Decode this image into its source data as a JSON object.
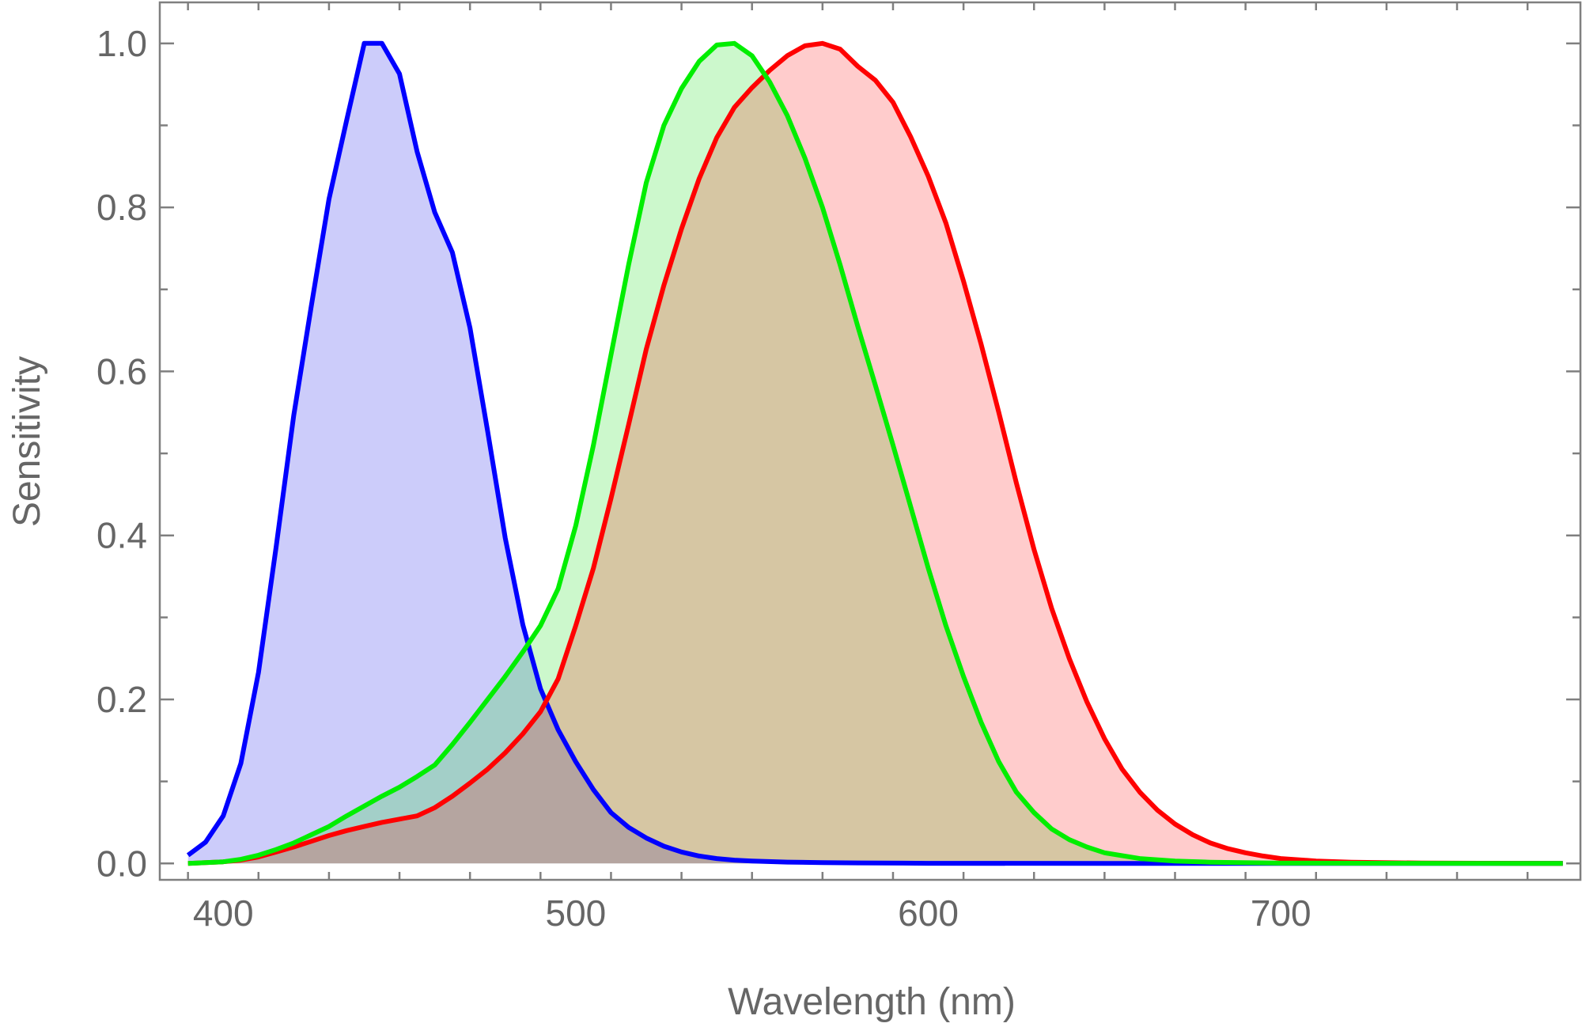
{
  "chart_data": {
    "type": "area",
    "title": "",
    "xlabel": "Wavelength (nm)",
    "ylabel": "Sensitivity",
    "xlim": [
      382,
      785
    ],
    "ylim": [
      -0.02,
      1.05
    ],
    "x_ticks": [
      400,
      500,
      600,
      700
    ],
    "x_tick_labels": [
      "400",
      "500",
      "600",
      "700"
    ],
    "y_ticks": [
      0.0,
      0.2,
      0.4,
      0.6,
      0.8,
      1.0
    ],
    "y_tick_labels": [
      "0.0",
      "0.2",
      "0.4",
      "0.6",
      "0.8",
      "1.0"
    ],
    "grid": false,
    "legend": "none",
    "frame_color": "#7f7f7f",
    "series": [
      {
        "color": "#0000ff",
        "fill": "rgba(0,0,230,0.20)",
        "points": [
          [
            390,
            0.01
          ],
          [
            395,
            0.026
          ],
          [
            400,
            0.058
          ],
          [
            405,
            0.122
          ],
          [
            410,
            0.233
          ],
          [
            415,
            0.386
          ],
          [
            420,
            0.546
          ],
          [
            425,
            0.68
          ],
          [
            430,
            0.81
          ],
          [
            435,
            0.906
          ],
          [
            440,
            1.0
          ],
          [
            445,
            1.0
          ],
          [
            450,
            0.963
          ],
          [
            455,
            0.868
          ],
          [
            460,
            0.794
          ],
          [
            465,
            0.745
          ],
          [
            470,
            0.653
          ],
          [
            475,
            0.527
          ],
          [
            480,
            0.397
          ],
          [
            485,
            0.291
          ],
          [
            490,
            0.213
          ],
          [
            495,
            0.163
          ],
          [
            500,
            0.124
          ],
          [
            505,
            0.09
          ],
          [
            510,
            0.062
          ],
          [
            515,
            0.044
          ],
          [
            520,
            0.031
          ],
          [
            525,
            0.021
          ],
          [
            530,
            0.014
          ],
          [
            535,
            0.009
          ],
          [
            540,
            0.006
          ],
          [
            545,
            0.004
          ],
          [
            550,
            0.003
          ],
          [
            560,
            0.0016
          ],
          [
            570,
            0.001
          ],
          [
            580,
            0.0006
          ],
          [
            600,
            0.0002
          ],
          [
            650,
            0.0
          ],
          [
            700,
            0.0
          ],
          [
            780,
            0.0
          ]
        ]
      },
      {
        "color": "#00ee00",
        "fill": "rgba(0,220,0,0.20)",
        "points": [
          [
            390,
            0.0
          ],
          [
            395,
            0.001
          ],
          [
            400,
            0.002
          ],
          [
            405,
            0.005
          ],
          [
            410,
            0.01
          ],
          [
            415,
            0.017
          ],
          [
            420,
            0.025
          ],
          [
            425,
            0.035
          ],
          [
            430,
            0.045
          ],
          [
            435,
            0.058
          ],
          [
            440,
            0.07
          ],
          [
            445,
            0.082
          ],
          [
            450,
            0.093
          ],
          [
            455,
            0.106
          ],
          [
            460,
            0.12
          ],
          [
            465,
            0.145
          ],
          [
            470,
            0.172
          ],
          [
            475,
            0.2
          ],
          [
            480,
            0.228
          ],
          [
            485,
            0.258
          ],
          [
            490,
            0.29
          ],
          [
            495,
            0.335
          ],
          [
            500,
            0.412
          ],
          [
            505,
            0.51
          ],
          [
            510,
            0.62
          ],
          [
            515,
            0.73
          ],
          [
            520,
            0.83
          ],
          [
            525,
            0.9
          ],
          [
            530,
            0.945
          ],
          [
            535,
            0.978
          ],
          [
            540,
            0.998
          ],
          [
            545,
            1.0
          ],
          [
            550,
            0.985
          ],
          [
            555,
            0.953
          ],
          [
            560,
            0.912
          ],
          [
            565,
            0.86
          ],
          [
            570,
            0.8
          ],
          [
            575,
            0.73
          ],
          [
            580,
            0.655
          ],
          [
            585,
            0.583
          ],
          [
            590,
            0.51
          ],
          [
            595,
            0.435
          ],
          [
            600,
            0.36
          ],
          [
            605,
            0.29
          ],
          [
            610,
            0.228
          ],
          [
            615,
            0.172
          ],
          [
            620,
            0.124
          ],
          [
            625,
            0.087
          ],
          [
            630,
            0.062
          ],
          [
            635,
            0.042
          ],
          [
            640,
            0.029
          ],
          [
            645,
            0.02
          ],
          [
            650,
            0.013
          ],
          [
            660,
            0.006
          ],
          [
            670,
            0.003
          ],
          [
            680,
            0.0015
          ],
          [
            700,
            0.0004
          ],
          [
            780,
            0.0
          ]
        ]
      },
      {
        "color": "#ff0000",
        "fill": "rgba(255,0,0,0.20)",
        "points": [
          [
            390,
            0.0
          ],
          [
            400,
            0.002
          ],
          [
            405,
            0.004
          ],
          [
            410,
            0.008
          ],
          [
            415,
            0.014
          ],
          [
            420,
            0.02
          ],
          [
            425,
            0.027
          ],
          [
            430,
            0.034
          ],
          [
            435,
            0.04
          ],
          [
            440,
            0.045
          ],
          [
            445,
            0.05
          ],
          [
            450,
            0.054
          ],
          [
            455,
            0.058
          ],
          [
            460,
            0.068
          ],
          [
            465,
            0.082
          ],
          [
            470,
            0.098
          ],
          [
            475,
            0.115
          ],
          [
            480,
            0.135
          ],
          [
            485,
            0.158
          ],
          [
            490,
            0.185
          ],
          [
            495,
            0.225
          ],
          [
            500,
            0.29
          ],
          [
            505,
            0.36
          ],
          [
            510,
            0.445
          ],
          [
            515,
            0.535
          ],
          [
            520,
            0.627
          ],
          [
            525,
            0.705
          ],
          [
            530,
            0.774
          ],
          [
            535,
            0.835
          ],
          [
            540,
            0.885
          ],
          [
            545,
            0.922
          ],
          [
            550,
            0.946
          ],
          [
            555,
            0.967
          ],
          [
            560,
            0.985
          ],
          [
            565,
            0.997
          ],
          [
            570,
            1.0
          ],
          [
            575,
            0.993
          ],
          [
            580,
            0.972
          ],
          [
            585,
            0.955
          ],
          [
            590,
            0.928
          ],
          [
            595,
            0.886
          ],
          [
            600,
            0.838
          ],
          [
            605,
            0.781
          ],
          [
            610,
            0.71
          ],
          [
            615,
            0.633
          ],
          [
            620,
            0.55
          ],
          [
            625,
            0.464
          ],
          [
            630,
            0.383
          ],
          [
            635,
            0.311
          ],
          [
            640,
            0.25
          ],
          [
            645,
            0.197
          ],
          [
            650,
            0.152
          ],
          [
            655,
            0.115
          ],
          [
            660,
            0.087
          ],
          [
            665,
            0.065
          ],
          [
            670,
            0.048
          ],
          [
            675,
            0.035
          ],
          [
            680,
            0.025
          ],
          [
            685,
            0.018
          ],
          [
            690,
            0.013
          ],
          [
            695,
            0.009
          ],
          [
            700,
            0.006
          ],
          [
            710,
            0.003
          ],
          [
            720,
            0.0015
          ],
          [
            740,
            0.0005
          ],
          [
            780,
            0.0
          ]
        ]
      }
    ]
  }
}
